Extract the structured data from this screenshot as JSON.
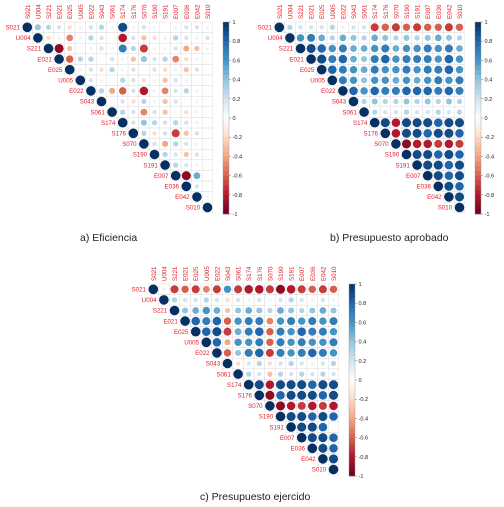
{
  "variables": [
    "S021",
    "U004",
    "S221",
    "E021",
    "E025",
    "U005",
    "E022",
    "S043",
    "S061",
    "S174",
    "S176",
    "S070",
    "S190",
    "S191",
    "E007",
    "E036",
    "E042",
    "S010"
  ],
  "colorbar_ticks": [
    "1",
    "0.8",
    "0.6",
    "0.4",
    "0.2",
    "0",
    "-0.2",
    "-0.4",
    "-0.6",
    "-0.8",
    "-1"
  ],
  "colors": {
    "positive": "#053061",
    "negative": "#67001F",
    "label": "#e0202a",
    "grid": "#dddddd"
  },
  "captions": {
    "a": "a) Eficiencia",
    "b": "b) Presupuesto aprobado",
    "c": "c) Presupuesto ejercido"
  },
  "chart_data": [
    {
      "type": "heatmap",
      "subtype": "correlation-upper-triangle",
      "title": "",
      "labels": [
        "S021",
        "U004",
        "S221",
        "E021",
        "E025",
        "U005",
        "E022",
        "S043",
        "S061",
        "S174",
        "S176",
        "S070",
        "S190",
        "S191",
        "E007",
        "E036",
        "E042",
        "S010"
      ],
      "ylim": [
        -1,
        1
      ],
      "values": [
        [
          1,
          0.4,
          0.3,
          0.2,
          -0.2,
          0.1,
          0.2,
          0.3,
          -0.1,
          0.9,
          -0.1,
          0.2,
          0.1,
          0.0,
          0.1,
          0.2,
          0.2,
          0.1
        ],
        [
          1,
          -0.2,
          0.1,
          -0.5,
          0.1,
          0.3,
          0.2,
          0.0,
          -0.8,
          0.2,
          -0.3,
          -0.2,
          0.1,
          0.3,
          0.2,
          0.1,
          0.2
        ],
        [
          1,
          -0.9,
          -0.3,
          0.0,
          0.1,
          0.2,
          -0.1,
          0.7,
          0.3,
          -0.7,
          -0.1,
          0.1,
          0.2,
          -0.4,
          -0.3,
          0.1
        ],
        [
          1,
          -0.6,
          0.3,
          0.3,
          0.0,
          0.2,
          0.1,
          -0.3,
          0.4,
          0.2,
          0.3,
          -0.5,
          -0.2,
          0.1
        ],
        [
          1,
          0.1,
          0.2,
          -0.2,
          0.3,
          -0.1,
          0.2,
          0.0,
          0.2,
          -0.2,
          0.1,
          -0.3,
          0.2
        ],
        [
          1,
          0.2,
          0.1,
          0.0,
          0.3,
          0.2,
          -0.2,
          0.1,
          -0.3,
          0.2,
          0.1,
          0.0
        ],
        [
          1,
          0.3,
          -0.4,
          -0.6,
          0.2,
          -0.8,
          0.1,
          -0.5,
          0.2,
          0.3,
          0.1
        ],
        [
          1,
          0.0,
          0.2,
          -0.2,
          0.3,
          0.1,
          -0.3,
          0.2,
          0.0,
          0.1
        ],
        [
          1,
          0.3,
          0.2,
          -0.5,
          0.2,
          -0.3,
          0.1,
          -0.2,
          0.1
        ],
        [
          1,
          0.2,
          0.4,
          0.3,
          0.2,
          0.3,
          0.2,
          0.1
        ],
        [
          1,
          0.3,
          -0.2,
          0.2,
          -0.7,
          -0.3,
          0.2
        ],
        [
          1,
          0.2,
          -0.4,
          0.3,
          0.2,
          0.1
        ],
        [
          1,
          0.3,
          0.2,
          -0.3,
          0.2
        ],
        [
          1,
          0.3,
          0.2,
          0.1
        ],
        [
          1,
          -0.9,
          0.5
        ],
        [
          1,
          0.2
        ],
        [
          1,
          0.1
        ],
        [
          1
        ]
      ]
    },
    {
      "type": "heatmap",
      "subtype": "correlation-upper-triangle",
      "title": "",
      "labels": [
        "S021",
        "U004",
        "S221",
        "E021",
        "E025",
        "U005",
        "E022",
        "S043",
        "S061",
        "S174",
        "S176",
        "S070",
        "S190",
        "S191",
        "E007",
        "E036",
        "E042",
        "S010"
      ],
      "ylim": [
        -1,
        1
      ],
      "values": [
        [
          1,
          0.3,
          0.2,
          0.2,
          0.2,
          0.3,
          0.1,
          0.2,
          0.2,
          -0.7,
          -0.6,
          -0.7,
          -0.6,
          -0.7,
          -0.6,
          -0.6,
          -0.7,
          -0.6
        ],
        [
          1,
          0.6,
          0.7,
          0.5,
          0.3,
          0.5,
          0.4,
          0.3,
          0.5,
          0.4,
          0.3,
          0.4,
          0.3,
          0.4,
          0.5,
          0.4,
          0.3
        ],
        [
          1,
          0.9,
          0.8,
          0.6,
          0.7,
          0.5,
          0.5,
          0.6,
          0.7,
          0.5,
          0.6,
          0.6,
          0.7,
          0.6,
          0.7,
          0.5
        ],
        [
          1,
          0.9,
          0.7,
          0.8,
          0.5,
          0.4,
          0.7,
          0.8,
          0.6,
          0.7,
          0.7,
          0.7,
          0.6,
          0.8,
          0.6
        ],
        [
          1,
          0.8,
          0.7,
          0.6,
          0.5,
          0.7,
          0.6,
          0.6,
          0.7,
          0.6,
          0.7,
          0.7,
          0.8,
          0.6
        ],
        [
          1,
          0.7,
          0.6,
          0.4,
          0.6,
          0.6,
          0.5,
          0.6,
          0.5,
          0.6,
          0.7,
          0.6,
          0.7
        ],
        [
          1,
          0.8,
          0.6,
          0.8,
          0.7,
          0.7,
          0.8,
          0.8,
          0.8,
          0.7,
          0.8,
          0.7
        ],
        [
          1,
          0.3,
          0.4,
          0.3,
          0.3,
          0.4,
          0.3,
          0.4,
          0.3,
          0.4,
          0.3
        ],
        [
          1,
          0.3,
          0.2,
          0.2,
          0.3,
          0.2,
          0.2,
          0.3,
          0.2,
          0.3
        ],
        [
          1,
          0.9,
          -0.8,
          0.9,
          0.9,
          0.9,
          0.8,
          0.9,
          0.9
        ],
        [
          1,
          -0.8,
          0.9,
          0.9,
          0.8,
          0.9,
          0.9,
          0.8
        ],
        [
          1,
          -0.9,
          -0.8,
          -0.8,
          -0.7,
          -0.8,
          -0.7
        ],
        [
          1,
          0.9,
          0.9,
          0.8,
          0.9,
          0.8
        ],
        [
          1,
          0.9,
          0.9,
          0.8,
          0.9
        ],
        [
          1,
          0.9,
          0.8,
          0.9
        ],
        [
          1,
          0.9,
          0.8
        ],
        [
          1,
          0.9
        ],
        [
          1
        ]
      ]
    },
    {
      "type": "heatmap",
      "subtype": "correlation-upper-triangle",
      "title": "",
      "labels": [
        "S021",
        "U004",
        "S221",
        "E021",
        "E025",
        "U005",
        "E022",
        "S043",
        "S061",
        "S174",
        "S176",
        "S070",
        "S190",
        "S191",
        "E007",
        "E036",
        "E042",
        "S010"
      ],
      "ylim": [
        -1,
        1
      ],
      "values": [
        [
          1,
          0.1,
          -0.7,
          -0.6,
          -0.7,
          -0.5,
          -0.7,
          0.6,
          -0.7,
          -0.8,
          -0.8,
          -0.7,
          -0.9,
          -0.8,
          -0.7,
          -0.6,
          -0.7,
          -0.6
        ],
        [
          1,
          0.3,
          0.2,
          0.2,
          0.3,
          0.2,
          -0.2,
          0.2,
          0.1,
          0.2,
          0.1,
          0.2,
          0.3,
          0.2,
          0.1,
          0.2,
          0.1
        ],
        [
          1,
          0.4,
          0.5,
          0.6,
          0.5,
          -0.3,
          0.4,
          0.5,
          0.4,
          0.3,
          0.5,
          0.4,
          0.3,
          0.4,
          0.5,
          0.4
        ],
        [
          1,
          0.8,
          0.7,
          0.8,
          -0.6,
          0.6,
          0.7,
          0.7,
          -0.5,
          0.6,
          0.7,
          0.6,
          0.7,
          0.6,
          0.7
        ],
        [
          1,
          0.8,
          0.9,
          -0.7,
          0.5,
          0.7,
          0.8,
          -0.6,
          0.7,
          0.6,
          0.8,
          0.7,
          0.7,
          0.6
        ],
        [
          1,
          0.8,
          -0.4,
          0.6,
          0.6,
          0.7,
          -0.6,
          0.7,
          0.6,
          0.7,
          0.6,
          0.6,
          0.7
        ],
        [
          1,
          -0.6,
          0.4,
          0.7,
          0.8,
          -0.7,
          0.7,
          0.6,
          0.7,
          0.8,
          0.7,
          0.6
        ],
        [
          1,
          -0.2,
          0.2,
          0.3,
          -0.2,
          0.2,
          0.3,
          0.2,
          0.1,
          0.2,
          0.3
        ],
        [
          1,
          0.3,
          0.2,
          -0.3,
          0.3,
          0.2,
          0.3,
          0.2,
          0.3,
          0.2
        ],
        [
          1,
          0.9,
          -0.8,
          0.9,
          0.9,
          0.9,
          0.8,
          0.9,
          0.9
        ],
        [
          1,
          -0.9,
          0.8,
          0.9,
          0.9,
          0.9,
          0.8,
          0.9
        ],
        [
          1,
          -0.9,
          -0.8,
          -0.7,
          -0.8,
          -0.7,
          -0.8
        ],
        [
          1,
          0.9,
          0.9,
          0.8,
          0.9,
          0.8
        ],
        [
          1,
          0.9,
          0.9,
          0.8
        ],
        [
          1,
          0.9,
          0.9,
          0.8
        ],
        [
          1,
          0.9,
          0.8
        ],
        [
          1,
          0.9
        ],
        [
          1
        ]
      ]
    }
  ]
}
